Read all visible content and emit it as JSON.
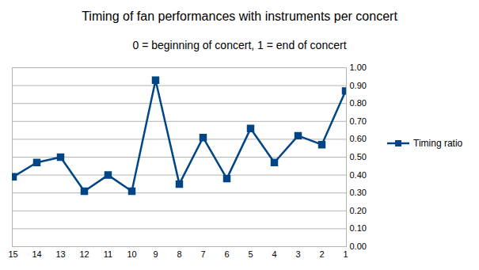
{
  "chart_data": {
    "type": "line",
    "title": "Timing of fan performances with instruments per concert",
    "subtitle": "0 = beginning of concert, 1 = end of concert",
    "categories": [
      "15",
      "14",
      "13",
      "12",
      "11",
      "10",
      "9",
      "8",
      "7",
      "6",
      "5",
      "4",
      "3",
      "2",
      "1"
    ],
    "series": [
      {
        "name": "Timing ratio",
        "color": "#004586",
        "marker": "square",
        "line_style": "solid",
        "values": [
          0.39,
          0.47,
          0.5,
          0.31,
          0.4,
          0.31,
          0.93,
          0.35,
          0.61,
          0.38,
          0.66,
          0.47,
          0.62,
          0.57,
          0.87
        ]
      }
    ],
    "ylim": [
      0,
      1
    ],
    "yticks": [
      {
        "value": 0,
        "label": "0.00"
      },
      {
        "value": 0.1,
        "label": "0.10"
      },
      {
        "value": 0.2,
        "label": "0.20"
      },
      {
        "value": 0.3,
        "label": "0.30"
      },
      {
        "value": 0.4,
        "label": "0.40"
      },
      {
        "value": 0.5,
        "label": "0.50"
      },
      {
        "value": 0.6,
        "label": "0.60"
      },
      {
        "value": 0.7,
        "label": "0.70"
      },
      {
        "value": 0.8,
        "label": "0.80"
      },
      {
        "value": 0.9,
        "label": "0.90"
      },
      {
        "value": 1,
        "label": "1.00"
      }
    ],
    "grid": true,
    "legend": "right"
  }
}
